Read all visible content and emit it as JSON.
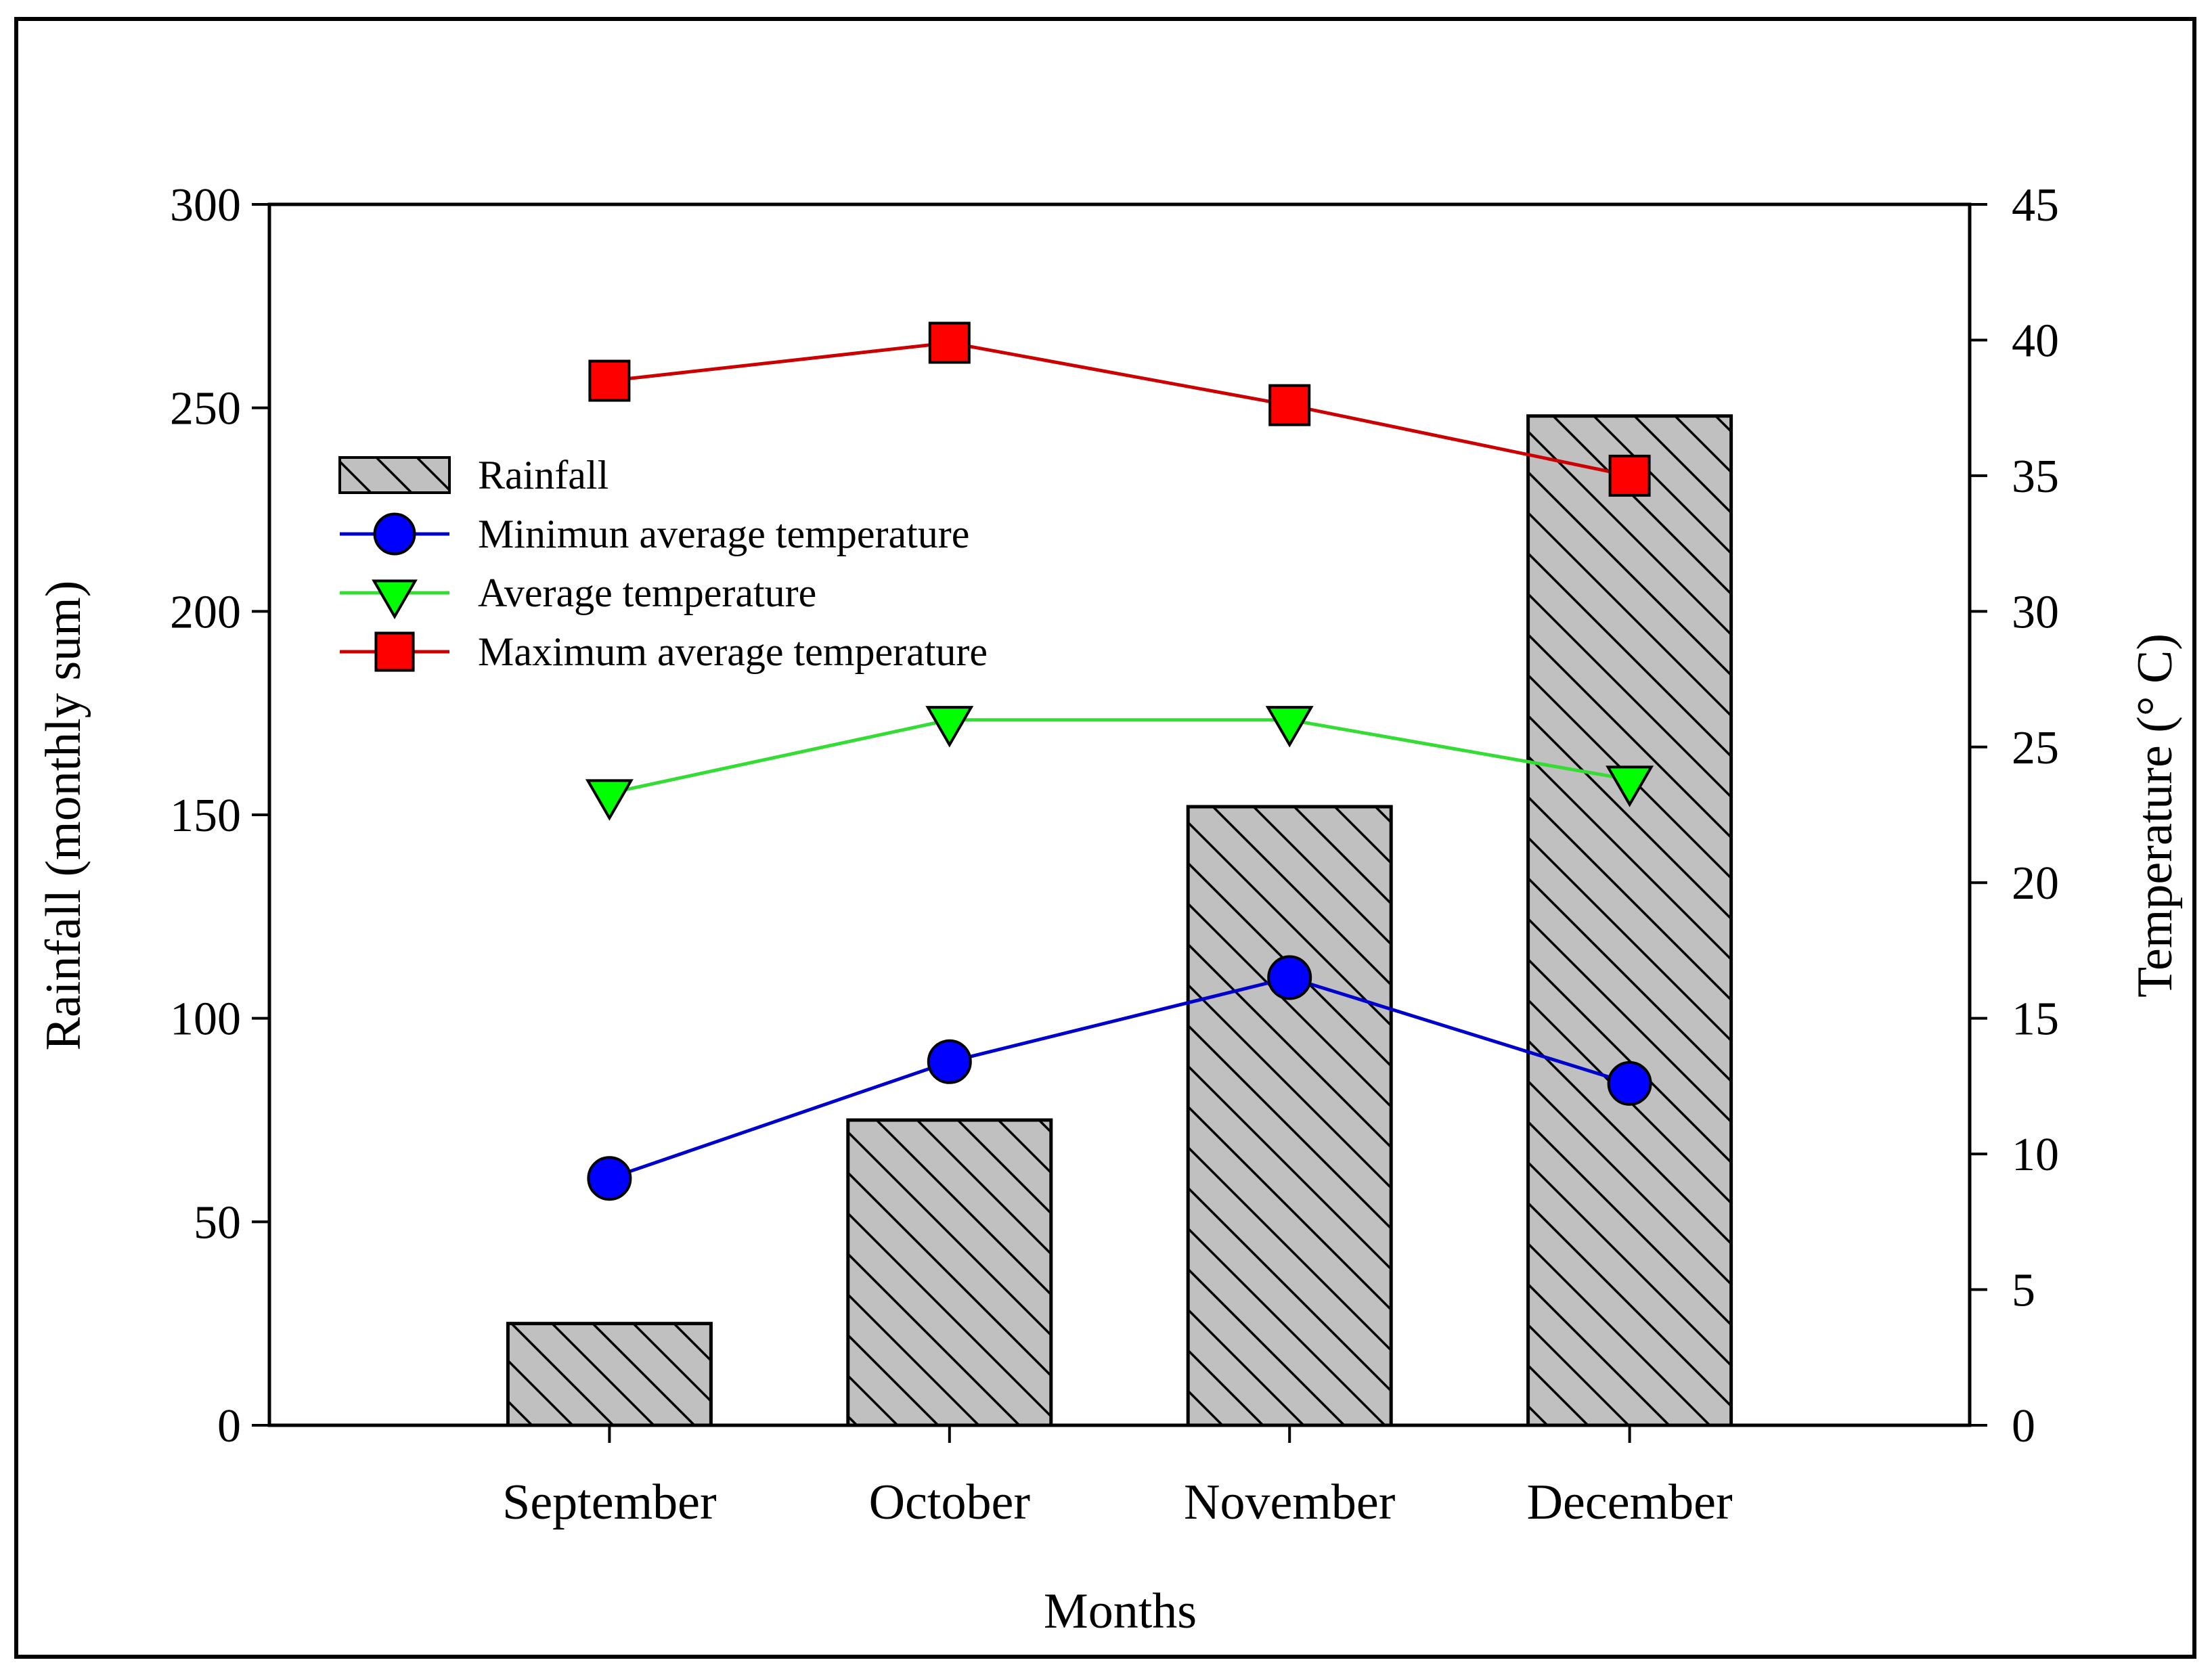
{
  "chart_data": {
    "type": "bar",
    "title": "",
    "xlabel": "Months",
    "ylabel": "Rainfall (monthly sum)",
    "y2label": "Temperature (° C)",
    "categories": [
      "September",
      "October",
      "November",
      "December"
    ],
    "ylim": [
      0,
      300
    ],
    "y2lim": [
      0,
      45
    ],
    "yticks": [
      0,
      50,
      100,
      150,
      200,
      250,
      300
    ],
    "y2ticks": [
      0,
      5,
      10,
      15,
      20,
      25,
      30,
      35,
      40,
      45
    ],
    "grid": false,
    "legend_position": "upper-left",
    "series": [
      {
        "name": "Rainfall",
        "type": "bar",
        "axis": "left",
        "values": [
          25,
          75,
          152,
          248
        ],
        "fill": "#c0c0c0",
        "pattern": "backslash-hatch"
      },
      {
        "name": "Minimun average temperature",
        "type": "line",
        "axis": "right",
        "marker": "circle",
        "values": [
          9.1,
          13.4,
          16.5,
          12.6
        ],
        "color": "#0000cc",
        "marker_color": "#0000ff"
      },
      {
        "name": "Average temperature",
        "type": "line",
        "axis": "right",
        "marker": "triangle-down",
        "values": [
          23.3,
          26.0,
          26.0,
          23.8
        ],
        "color": "#33dd33",
        "marker_color": "#00ff00"
      },
      {
        "name": "Maximum average temperature",
        "type": "line",
        "axis": "right",
        "marker": "square",
        "values": [
          38.5,
          39.9,
          37.6,
          35.0
        ],
        "color": "#cc0000",
        "marker_color": "#ff0000"
      }
    ]
  }
}
